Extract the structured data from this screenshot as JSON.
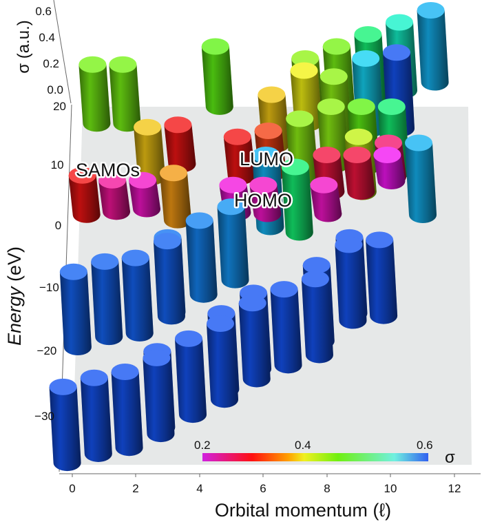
{
  "chart_data": {
    "type": "bar3d",
    "xlabel": "Orbital momentum (ℓ)",
    "ylabel_prefix": "Energy",
    "ylabel_suffix": " (eV)",
    "zlabel": "σ (a.u.)",
    "x_ticks": [
      "0",
      "2",
      "4",
      "6",
      "8",
      "10",
      "12"
    ],
    "y_ticks": [
      "20",
      "10",
      "0",
      "−10",
      "−20",
      "−30"
    ],
    "z_ticks": [
      "0.6",
      "0.4",
      "0.2",
      "0.0"
    ],
    "xlim": [
      0,
      12
    ],
    "ylim": [
      -35,
      20
    ],
    "zlim": [
      0,
      0.6
    ],
    "colorbar": {
      "label": "σ",
      "ticks": [
        "0.2",
        "0.4",
        "0.6"
      ],
      "range": [
        0.2,
        0.6
      ],
      "colors": [
        "#d020e0",
        "#ff1010",
        "#ffa000",
        "#f0f020",
        "#70f010",
        "#70f0e0",
        "#3060f0"
      ]
    },
    "annotations": [
      "SAMOs",
      "LUMO",
      "HOMO"
    ],
    "bars": [
      {
        "l": 0,
        "E": -26.5,
        "s": 0.58
      },
      {
        "l": 1,
        "E": -25,
        "s": 0.58
      },
      {
        "l": 2,
        "E": -24,
        "s": 0.58
      },
      {
        "l": 3,
        "E": -21.7,
        "s": 0.58
      },
      {
        "l": 3,
        "E": -20.6,
        "s": 0.58
      },
      {
        "l": 4,
        "E": -18.5,
        "s": 0.58
      },
      {
        "l": 5,
        "E": -16,
        "s": 0.58
      },
      {
        "l": 5,
        "E": -14.3,
        "s": 0.58
      },
      {
        "l": 6,
        "E": -12.6,
        "s": 0.58
      },
      {
        "l": 6,
        "E": -10.9,
        "s": 0.58
      },
      {
        "l": 7,
        "E": -10.3,
        "s": 0.58
      },
      {
        "l": 8,
        "E": -8.6,
        "s": 0.58
      },
      {
        "l": 8,
        "E": -6.3,
        "s": 0.58
      },
      {
        "l": 9,
        "E": -2.9,
        "s": 0.58
      },
      {
        "l": 9,
        "E": -1.7,
        "s": 0.58
      },
      {
        "l": 10,
        "E": -2.1,
        "s": 0.58
      },
      {
        "l": 0,
        "E": -7.4,
        "s": 0.575
      },
      {
        "l": 1,
        "E": -5.7,
        "s": 0.575
      },
      {
        "l": 2,
        "E": -5.1,
        "s": 0.575
      },
      {
        "l": 3,
        "E": -2.3,
        "s": 0.575
      },
      {
        "l": 3,
        "E": -1.7,
        "s": 0.57
      },
      {
        "l": 4,
        "E": 1.1,
        "s": 0.565
      },
      {
        "l": 5,
        "E": 3.4,
        "s": 0.56
      },
      {
        "l": 0,
        "E": 8.6,
        "s": 0.3
      },
      {
        "l": 1,
        "E": 7.8,
        "s": 0.24
      },
      {
        "l": 2,
        "E": 7.8,
        "s": 0.22
      },
      {
        "l": 3,
        "E": 9,
        "s": 0.36
      },
      {
        "l": 2,
        "E": 16.6,
        "s": 0.38
      },
      {
        "l": 3,
        "E": 17,
        "s": 0.3
      },
      {
        "l": 5,
        "E": 7,
        "s": 0.21
      },
      {
        "l": 6,
        "E": 7,
        "s": 0.22
      },
      {
        "l": 5,
        "E": 15,
        "s": 0.3
      },
      {
        "l": 6,
        "E": 16,
        "s": 0.32
      },
      {
        "l": 6,
        "E": 12,
        "s": 0.55
      },
      {
        "l": 7,
        "E": 18,
        "s": 0.38
      },
      {
        "l": 7,
        "E": 10,
        "s": 0.5
      },
      {
        "l": 8,
        "E": 7,
        "s": 0.22
      },
      {
        "l": 8,
        "E": 12,
        "s": 0.28
      },
      {
        "l": 9,
        "E": 15,
        "s": 0.42
      },
      {
        "l": 9,
        "E": 12,
        "s": 0.28
      },
      {
        "l": 10,
        "E": 14,
        "s": 0.26
      },
      {
        "l": 10,
        "E": 12,
        "s": 0.2
      },
      {
        "l": 11,
        "E": 14,
        "s": 0.55
      },
      {
        "l": 0,
        "E": 27,
        "s": 0.45
      },
      {
        "l": 1,
        "E": 27,
        "s": 0.45
      },
      {
        "l": 4,
        "E": 30,
        "s": 0.46
      },
      {
        "l": 7,
        "E": 28,
        "s": 0.44
      },
      {
        "l": 7,
        "E": 26,
        "s": 0.4
      },
      {
        "l": 8,
        "E": 30,
        "s": 0.45
      },
      {
        "l": 8,
        "E": 25,
        "s": 0.44
      },
      {
        "l": 9,
        "E": 32,
        "s": 0.5
      },
      {
        "l": 9,
        "E": 28,
        "s": 0.54
      },
      {
        "l": 10,
        "E": 34,
        "s": 0.52
      },
      {
        "l": 10,
        "E": 29,
        "s": 0.58
      },
      {
        "l": 11,
        "E": 36,
        "s": 0.55
      },
      {
        "l": 8,
        "E": 20,
        "s": 0.44
      },
      {
        "l": 9,
        "E": 20,
        "s": 0.46
      },
      {
        "l": 10,
        "E": 20,
        "s": 0.5
      },
      {
        "l": 6,
        "E": 22,
        "s": 0.38
      },
      {
        "l": 7,
        "E": 18,
        "s": 0.44
      }
    ]
  }
}
